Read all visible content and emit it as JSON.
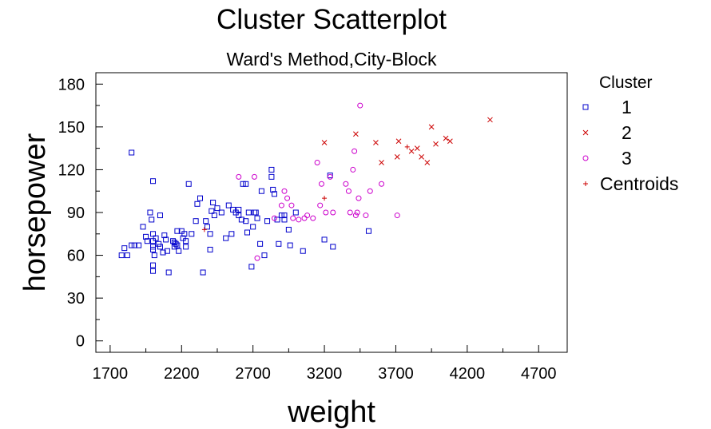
{
  "chart_data": {
    "type": "scatter",
    "title": "Cluster Scatterplot",
    "subtitle": "Ward's Method,City-Block",
    "xlabel": "weight",
    "ylabel": "horsepower",
    "xlim": [
      1600,
      4900
    ],
    "ylim": [
      -8,
      188
    ],
    "xticks": [
      1700,
      2200,
      2700,
      3200,
      3700,
      4200,
      4700
    ],
    "yticks": [
      0,
      30,
      60,
      90,
      120,
      150,
      180
    ],
    "grid": false,
    "legend": {
      "title": "Cluster",
      "position": "right"
    },
    "series": [
      {
        "name": "1",
        "marker": "square",
        "color": "#0000cc",
        "points": [
          [
            1850,
            132
          ],
          [
            2000,
            112
          ],
          [
            1780,
            60
          ],
          [
            1800,
            65
          ],
          [
            1820,
            60
          ],
          [
            1850,
            67
          ],
          [
            1870,
            67
          ],
          [
            1900,
            67
          ],
          [
            1930,
            80
          ],
          [
            1950,
            73
          ],
          [
            1960,
            70
          ],
          [
            1980,
            90
          ],
          [
            1990,
            85
          ],
          [
            2000,
            75
          ],
          [
            2000,
            70
          ],
          [
            2000,
            66
          ],
          [
            2000,
            64
          ],
          [
            2010,
            60
          ],
          [
            2000,
            53
          ],
          [
            2000,
            49
          ],
          [
            2020,
            72
          ],
          [
            2040,
            68
          ],
          [
            2050,
            88
          ],
          [
            2050,
            66
          ],
          [
            2070,
            62
          ],
          [
            2080,
            74
          ],
          [
            2090,
            71
          ],
          [
            2100,
            63
          ],
          [
            2110,
            48
          ],
          [
            2140,
            70
          ],
          [
            2150,
            69
          ],
          [
            2150,
            66
          ],
          [
            2160,
            68
          ],
          [
            2170,
            67
          ],
          [
            2180,
            63
          ],
          [
            2170,
            77
          ],
          [
            2200,
            77
          ],
          [
            2210,
            72
          ],
          [
            2220,
            75
          ],
          [
            2230,
            70
          ],
          [
            2230,
            66
          ],
          [
            2250,
            110
          ],
          [
            2270,
            75
          ],
          [
            2300,
            84
          ],
          [
            2310,
            96
          ],
          [
            2330,
            100
          ],
          [
            2350,
            48
          ],
          [
            2370,
            84
          ],
          [
            2380,
            80
          ],
          [
            2400,
            75
          ],
          [
            2400,
            64
          ],
          [
            2410,
            91
          ],
          [
            2420,
            97
          ],
          [
            2430,
            88
          ],
          [
            2450,
            93
          ],
          [
            2480,
            90
          ],
          [
            2510,
            72
          ],
          [
            2530,
            95
          ],
          [
            2550,
            75
          ],
          [
            2560,
            92
          ],
          [
            2580,
            90
          ],
          [
            2600,
            88
          ],
          [
            2600,
            92
          ],
          [
            2620,
            85
          ],
          [
            2630,
            110
          ],
          [
            2650,
            110
          ],
          [
            2650,
            84
          ],
          [
            2660,
            76
          ],
          [
            2670,
            90
          ],
          [
            2690,
            52
          ],
          [
            2700,
            80
          ],
          [
            2710,
            90
          ],
          [
            2720,
            90
          ],
          [
            2730,
            86
          ],
          [
            2750,
            68
          ],
          [
            2760,
            105
          ],
          [
            2780,
            60
          ],
          [
            2800,
            84
          ],
          [
            2830,
            120
          ],
          [
            2830,
            115
          ],
          [
            2840,
            106
          ],
          [
            2850,
            103
          ],
          [
            2870,
            85
          ],
          [
            2880,
            68
          ],
          [
            2900,
            88
          ],
          [
            2920,
            88
          ],
          [
            2920,
            85
          ],
          [
            2950,
            78
          ],
          [
            2960,
            67
          ],
          [
            3000,
            90
          ],
          [
            3050,
            63
          ],
          [
            3200,
            71
          ],
          [
            3240,
            116
          ],
          [
            3260,
            66
          ],
          [
            3510,
            77
          ]
        ]
      },
      {
        "name": "2",
        "marker": "x",
        "color": "#cc0000",
        "points": [
          [
            3200,
            139
          ],
          [
            3420,
            145
          ],
          [
            3560,
            139
          ],
          [
            3600,
            125
          ],
          [
            3720,
            140
          ],
          [
            3710,
            129
          ],
          [
            3810,
            133
          ],
          [
            3850,
            135
          ],
          [
            3880,
            129
          ],
          [
            3920,
            125
          ],
          [
            3950,
            150
          ],
          [
            3980,
            138
          ],
          [
            4050,
            142
          ],
          [
            4080,
            140
          ],
          [
            4360,
            155
          ]
        ]
      },
      {
        "name": "3",
        "marker": "circle",
        "color": "#cc00cc",
        "points": [
          [
            2600,
            115
          ],
          [
            2710,
            115
          ],
          [
            2730,
            58
          ],
          [
            2850,
            86
          ],
          [
            2900,
            95
          ],
          [
            2920,
            105
          ],
          [
            2940,
            100
          ],
          [
            2970,
            95
          ],
          [
            2980,
            86
          ],
          [
            3020,
            85
          ],
          [
            3060,
            86
          ],
          [
            3080,
            88
          ],
          [
            3120,
            86
          ],
          [
            3150,
            125
          ],
          [
            3170,
            95
          ],
          [
            3180,
            110
          ],
          [
            3210,
            90
          ],
          [
            3240,
            115
          ],
          [
            3260,
            90
          ],
          [
            3350,
            110
          ],
          [
            3370,
            105
          ],
          [
            3380,
            90
          ],
          [
            3400,
            120
          ],
          [
            3410,
            133
          ],
          [
            3420,
            88
          ],
          [
            3430,
            90
          ],
          [
            3440,
            100
          ],
          [
            3450,
            165
          ],
          [
            3490,
            88
          ],
          [
            3520,
            105
          ],
          [
            3600,
            110
          ],
          [
            3710,
            88
          ]
        ]
      },
      {
        "name": "Centroids",
        "marker": "plus",
        "color": "#cc0000",
        "points": [
          [
            2360,
            78
          ],
          [
            3200,
            100
          ],
          [
            3780,
            136
          ]
        ]
      }
    ]
  }
}
